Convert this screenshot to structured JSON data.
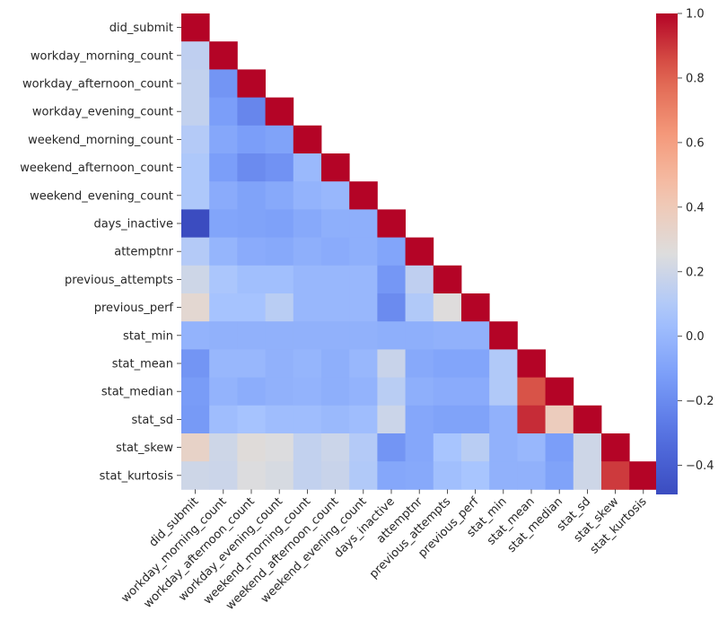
{
  "chart_data": {
    "type": "heatmap",
    "title": "",
    "xlabel": "",
    "ylabel": "",
    "mask": "upper-triangle (cells above the diagonal are blank)",
    "colormap": "coolwarm",
    "vmin": -0.49,
    "vmax": 1.0,
    "colorbar_ticks": [
      -0.4,
      -0.2,
      0.0,
      0.2,
      0.4,
      0.6,
      0.8,
      1.0
    ],
    "colorbar_tick_labels": [
      "−0.4",
      "−0.2",
      "0.0",
      "0.2",
      "0.4",
      "0.6",
      "0.8",
      "1.0"
    ],
    "labels": [
      "did_submit",
      "workday_morning_count",
      "workday_afternoon_count",
      "workday_evening_count",
      "weekend_morning_count",
      "weekend_afternoon_count",
      "weekend_evening_count",
      "days_inactive",
      "attemptnr",
      "previous_attempts",
      "previous_perf",
      "stat_min",
      "stat_mean",
      "stat_median",
      "stat_sd",
      "stat_skew",
      "stat_kurtosis"
    ],
    "rows": [
      [
        1.0
      ],
      [
        0.15,
        1.0
      ],
      [
        0.16,
        -0.16,
        1.0
      ],
      [
        0.16,
        -0.12,
        -0.22,
        1.0
      ],
      [
        0.11,
        -0.08,
        -0.12,
        -0.1,
        1.0
      ],
      [
        0.09,
        -0.12,
        -0.2,
        -0.17,
        0.01,
        1.0
      ],
      [
        0.09,
        -0.06,
        -0.1,
        -0.07,
        -0.02,
        0.0,
        1.0
      ],
      [
        -0.49,
        -0.09,
        -0.1,
        -0.11,
        -0.07,
        -0.04,
        -0.04,
        1.0
      ],
      [
        0.11,
        -0.01,
        -0.06,
        -0.07,
        -0.04,
        -0.06,
        -0.04,
        -0.09,
        1.0
      ],
      [
        0.2,
        0.08,
        0.04,
        0.04,
        0.0,
        0.0,
        0.0,
        -0.15,
        0.15,
        1.0
      ],
      [
        0.3,
        0.06,
        0.06,
        0.13,
        0.0,
        0.0,
        0.0,
        -0.2,
        0.1,
        0.26,
        1.0
      ],
      [
        -0.02,
        -0.03,
        -0.03,
        -0.03,
        -0.03,
        -0.03,
        -0.03,
        -0.04,
        -0.04,
        -0.03,
        -0.03,
        1.0
      ],
      [
        -0.16,
        0.0,
        0.0,
        -0.03,
        -0.01,
        -0.04,
        0.0,
        0.18,
        -0.07,
        -0.09,
        -0.09,
        0.1,
        1.0
      ],
      [
        -0.13,
        -0.02,
        -0.05,
        -0.03,
        -0.02,
        -0.04,
        -0.02,
        0.13,
        -0.04,
        -0.06,
        -0.06,
        0.1,
        0.84,
        1.0
      ],
      [
        -0.14,
        0.03,
        0.06,
        0.03,
        0.03,
        0.01,
        0.03,
        0.19,
        -0.08,
        -0.1,
        -0.1,
        -0.03,
        0.92,
        0.38,
        1.0
      ],
      [
        0.34,
        0.2,
        0.27,
        0.25,
        0.16,
        0.19,
        0.11,
        -0.16,
        -0.08,
        0.07,
        0.13,
        -0.03,
        0.0,
        -0.12,
        0.2,
        1.0
      ],
      [
        0.2,
        0.19,
        0.25,
        0.23,
        0.16,
        0.18,
        0.1,
        -0.08,
        -0.07,
        0.04,
        0.07,
        -0.03,
        -0.03,
        -0.1,
        0.2,
        0.89,
        1.0
      ]
    ]
  }
}
